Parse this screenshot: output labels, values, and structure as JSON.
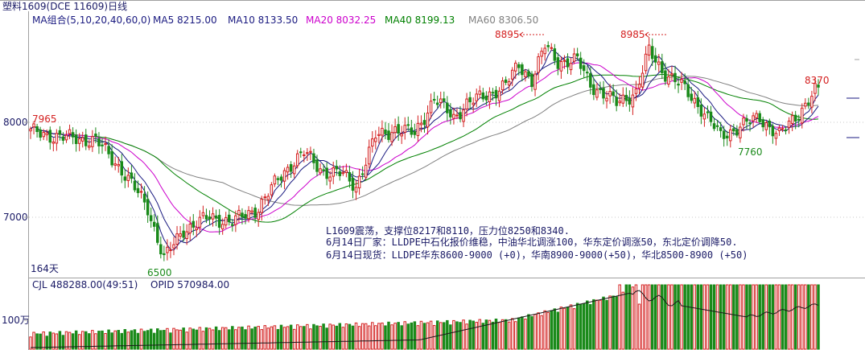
{
  "header": {
    "title": "塑料1609(DCE 11609)日线",
    "ma_prefix": "MA组合(5,10,20,40,60,0)",
    "ma_values": [
      {
        "label": "MA5 8215.00",
        "color": "#1a1a80"
      },
      {
        "label": "MA10 8133.50",
        "color": "#1a1a80"
      },
      {
        "label": "MA20 8032.25",
        "color": "#cc00cc"
      },
      {
        "label": "MA40 8199.13",
        "color": "#008000"
      },
      {
        "label": "MA60 8306.50",
        "color": "#808080"
      }
    ]
  },
  "price_axis": {
    "ticks": [
      "8000",
      "7000"
    ]
  },
  "days_label": "164天",
  "annotations": {
    "peak1": "8895",
    "peak2": "8985",
    "high_left": "7965",
    "low_left": "6500",
    "low_right": "7760",
    "last": "8370"
  },
  "news": [
    "L1609震荡，支撑位8217和8110，压力位8250和8340.",
    "6月14日厂家：LLDPE中石化报价维稳，中油华北调涨100，华东定价调涨50，东北定价调降50.",
    "6月14日现货：LLDPE华东8600-9000 (+0)，华南8900-9000(+50)，华北8500-8900 (+50)"
  ],
  "volume_panel": {
    "cjl": "CJL  488288.00(49:51)",
    "opid": "OPID  570984.00",
    "axis_label": "100万"
  },
  "colors": {
    "up": "#d42020",
    "down": "#1a8a1a",
    "ma5": "#1a1a80",
    "ma10": "#1a1a80",
    "ma20": "#cc00cc",
    "ma40": "#008000",
    "ma60": "#808080",
    "axis": "#a0a0a0",
    "text": "#1a1a66"
  },
  "chart_data": {
    "type": "candlestick",
    "title": "塑料1609(DCE 11609)日线",
    "ylim": [
      6400,
      9200
    ],
    "yticks": [
      7000,
      8000
    ],
    "note": "approximate daily OHLC read from the chart; last MA values shown in header",
    "close_points": [
      [
        0,
        7900
      ],
      [
        10,
        7840
      ],
      [
        20,
        7810
      ],
      [
        28,
        7500
      ],
      [
        36,
        7100
      ],
      [
        41,
        6560
      ],
      [
        47,
        6870
      ],
      [
        55,
        7000
      ],
      [
        62,
        6950
      ],
      [
        70,
        7100
      ],
      [
        76,
        7400
      ],
      [
        80,
        7560
      ],
      [
        84,
        7680
      ],
      [
        90,
        7480
      ],
      [
        96,
        7450
      ],
      [
        100,
        7330
      ],
      [
        106,
        7850
      ],
      [
        112,
        7930
      ],
      [
        118,
        7880
      ],
      [
        124,
        8250
      ],
      [
        130,
        8050
      ],
      [
        134,
        8200
      ],
      [
        140,
        8280
      ],
      [
        146,
        8400
      ],
      [
        150,
        8600
      ],
      [
        154,
        8450
      ],
      [
        158,
        8800
      ],
      [
        162,
        8640
      ],
      [
        168,
        8650
      ],
      [
        172,
        8400
      ],
      [
        176,
        8300
      ],
      [
        180,
        8200
      ],
      [
        186,
        8320
      ],
      [
        190,
        8750
      ],
      [
        194,
        8550
      ],
      [
        200,
        8380
      ],
      [
        206,
        8150
      ],
      [
        212,
        7850
      ],
      [
        218,
        7960
      ],
      [
        224,
        8050
      ],
      [
        230,
        7860
      ],
      [
        236,
        8100
      ],
      [
        242,
        8370
      ]
    ],
    "candles": 243,
    "volume_million": {
      "max": 1.6,
      "last_oi": 570984,
      "last_volume": 488288
    }
  }
}
